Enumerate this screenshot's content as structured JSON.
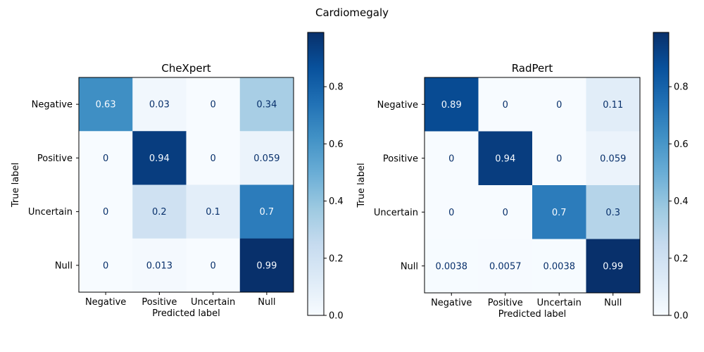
{
  "suptitle": "Cardiomegaly",
  "colormap": {
    "name": "Blues",
    "stops": [
      "#f7fbff",
      "#deebf7",
      "#c6dbef",
      "#9ecae1",
      "#6baed6",
      "#4292c6",
      "#2171b5",
      "#08519c",
      "#08306b"
    ]
  },
  "chart_data": [
    {
      "type": "heatmap",
      "title": "CheXpert",
      "xlabel": "Predicted label",
      "ylabel": "True label",
      "categories": [
        "Negative",
        "Positive",
        "Uncertain",
        "Null"
      ],
      "matrix": [
        [
          0.63,
          0.03,
          0,
          0.34
        ],
        [
          0,
          0.94,
          0,
          0.059
        ],
        [
          0,
          0.2,
          0.1,
          0.7
        ],
        [
          0,
          0.013,
          0,
          0.99
        ]
      ],
      "cell_labels": [
        [
          "0.63",
          "0.03",
          "0",
          "0.34"
        ],
        [
          "0",
          "0.94",
          "0",
          "0.059"
        ],
        [
          "0",
          "0.2",
          "0.1",
          "0.7"
        ],
        [
          "0",
          "0.013",
          "0",
          "0.99"
        ]
      ],
      "colorbar": {
        "range": [
          0,
          0.99
        ],
        "ticks": [
          0,
          0.2,
          0.4,
          0.6,
          0.8
        ],
        "tick_labels": [
          "0.0",
          "0.2",
          "0.4",
          "0.6",
          "0.8"
        ]
      }
    },
    {
      "type": "heatmap",
      "title": "RadPert",
      "xlabel": "Predicted label",
      "ylabel": "True label",
      "categories": [
        "Negative",
        "Positive",
        "Uncertain",
        "Null"
      ],
      "matrix": [
        [
          0.89,
          0,
          0,
          0.11
        ],
        [
          0,
          0.94,
          0,
          0.059
        ],
        [
          0,
          0,
          0.7,
          0.3
        ],
        [
          0.0038,
          0.0057,
          0.0038,
          0.99
        ]
      ],
      "cell_labels": [
        [
          "0.89",
          "0",
          "0",
          "0.11"
        ],
        [
          "0",
          "0.94",
          "0",
          "0.059"
        ],
        [
          "0",
          "0",
          "0.7",
          "0.3"
        ],
        [
          "0.0038",
          "0.0057",
          "0.0038",
          "0.99"
        ]
      ],
      "colorbar": {
        "range": [
          0,
          0.99
        ],
        "ticks": [
          0,
          0.2,
          0.4,
          0.6,
          0.8
        ],
        "tick_labels": [
          "0.0",
          "0.2",
          "0.4",
          "0.6",
          "0.8"
        ]
      }
    }
  ]
}
